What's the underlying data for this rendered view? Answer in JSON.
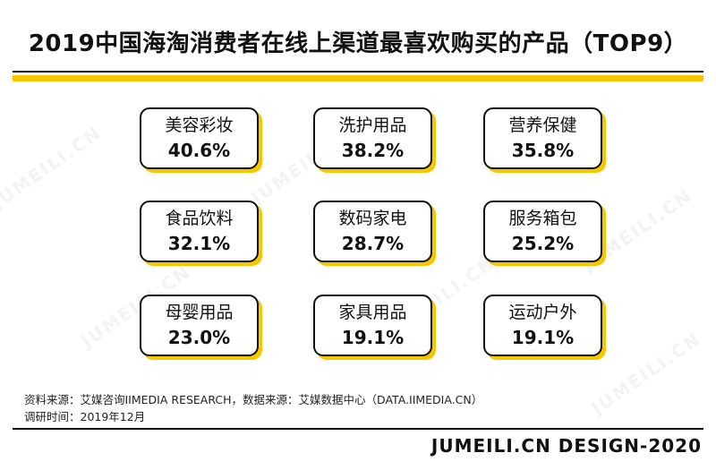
{
  "title": "2019中国海淘消费者在线上渠道最喜欢购买的产品（TOP9）",
  "watermark": "JUMEILI.CN",
  "chart_data": {
    "type": "table",
    "categories": [
      "美容彩妆",
      "洗护用品",
      "营养保健",
      "食品饮料",
      "数码家电",
      "服务箱包",
      "母婴用品",
      "家具用品",
      "运动户外"
    ],
    "values": [
      40.6,
      38.2,
      35.8,
      32.1,
      28.7,
      25.2,
      23.0,
      19.1,
      19.1
    ],
    "value_labels": [
      "40.6%",
      "38.2%",
      "35.8%",
      "32.1%",
      "28.7%",
      "25.2%",
      "23.0%",
      "19.1%",
      "19.1%"
    ],
    "unit": "%"
  },
  "colors": {
    "accent": "#f7c600",
    "ink": "#111111"
  },
  "footer": {
    "source": "资料来源：艾媒咨询IIMEDIA RESEARCH，数据来源：艾媒数据中心（DATA.IIMEDIA.CN）",
    "date": "调研时间：2019年12月"
  },
  "brand": "JUMEILI.CN DESIGN-2020"
}
